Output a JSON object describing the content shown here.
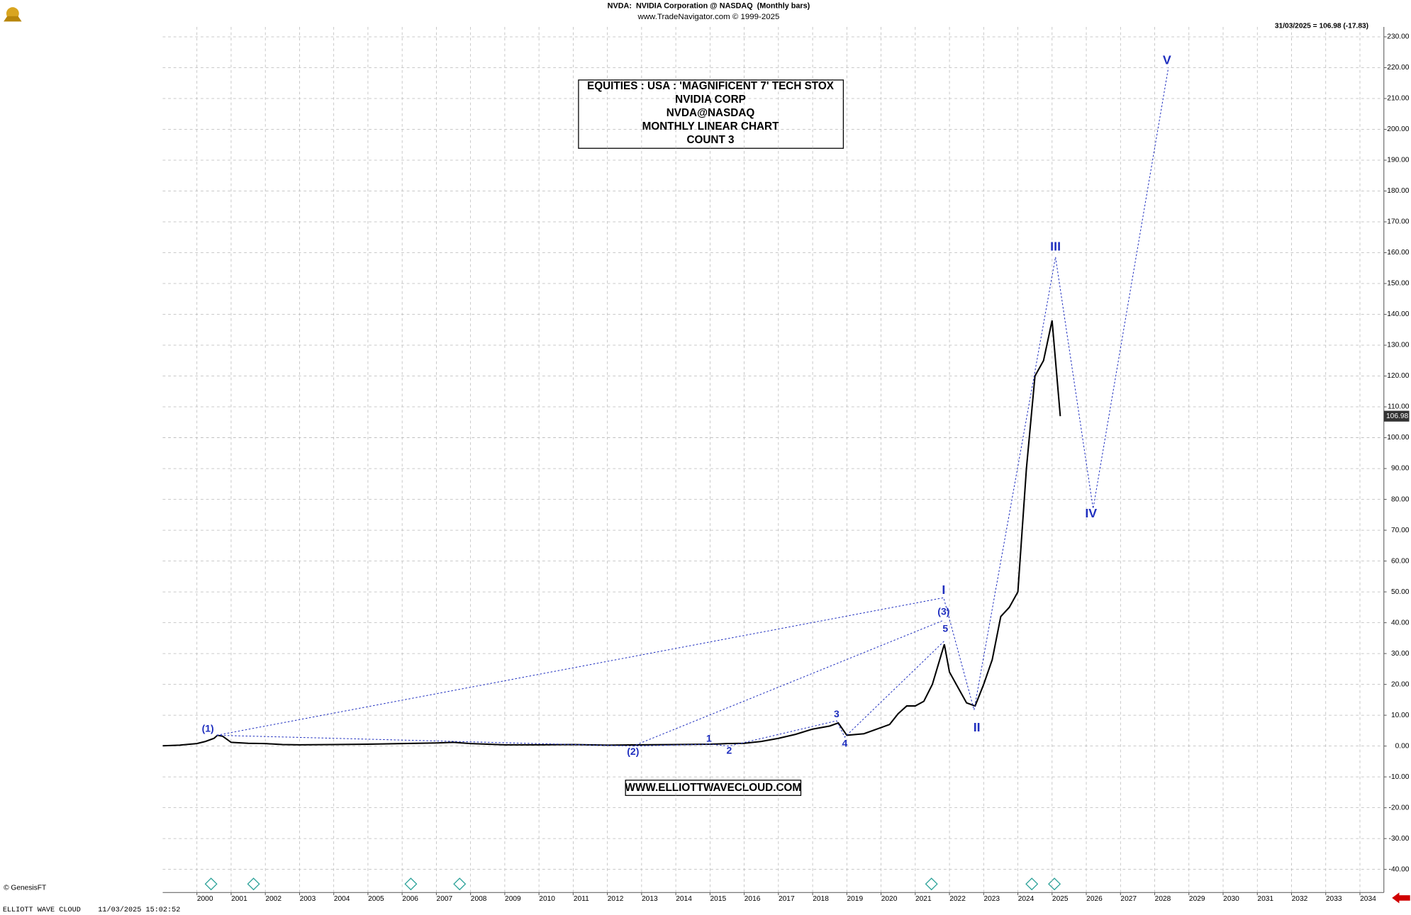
{
  "chart_data": {
    "type": "line",
    "title": "NVDA:  NVIDIA Corporation @ NASDAQ  (Monthly bars)",
    "subtitle": "www.TradeNavigator.com © 1999-2025",
    "last_label": "31/03/2025 = 106.98 (-17.83)",
    "last_price": 106.98,
    "info_box": [
      "EQUITIES : USA : 'MAGNIFICENT 7' TECH STOX",
      "NVIDIA CORP",
      "NVDA@NASDAQ",
      "MONTHLY LINEAR CHART",
      "COUNT 3"
    ],
    "website": "WWW.ELLIOTTWAVECLOUD.COM",
    "credit": "© GenesisFT",
    "footer": "ELLIOTT WAVE CLOUD    11/03/2025 15:02:52",
    "color": "#000000",
    "x": [
      1999.0,
      1999.5,
      2000.0,
      2000.25,
      2000.5,
      2000.6,
      2000.75,
      2001.0,
      2001.5,
      2002.0,
      2002.5,
      2003,
      2004,
      2005,
      2006,
      2007,
      2007.5,
      2008,
      2009,
      2010,
      2011,
      2012,
      2013,
      2014,
      2015,
      2015.5,
      2016,
      2016.5,
      2017,
      2017.5,
      2018,
      2018.5,
      2018.75,
      2019,
      2019.5,
      2020,
      2020.25,
      2020.5,
      2020.75,
      2021,
      2021.25,
      2021.5,
      2021.85,
      2022,
      2022.25,
      2022.5,
      2022.75,
      2023,
      2023.25,
      2023.5,
      2023.75,
      2024,
      2024.25,
      2024.5,
      2024.75,
      2025.0,
      2025.24
    ],
    "values": [
      0.1,
      0.3,
      0.8,
      1.5,
      2.5,
      3.5,
      3.2,
      1.2,
      0.9,
      0.8,
      0.5,
      0.4,
      0.5,
      0.6,
      0.8,
      1.0,
      1.2,
      0.8,
      0.4,
      0.4,
      0.5,
      0.3,
      0.4,
      0.5,
      0.6,
      0.8,
      0.9,
      1.5,
      2.5,
      3.8,
      5.5,
      6.5,
      7.5,
      3.5,
      4.0,
      6.0,
      7.0,
      10.5,
      13.0,
      13.0,
      14.5,
      20.0,
      33.0,
      24.0,
      19.0,
      14.0,
      13.0,
      20.0,
      28.0,
      42.0,
      45.0,
      50.0,
      90.0,
      120.0,
      125.0,
      138.0,
      106.98
    ],
    "wave_color": "#1f2fbf",
    "wave_lines": [
      {
        "x": [
          2000.58,
          2021.83,
          2022.72,
          2025.1,
          2026.2,
          2028.4
        ],
        "values": [
          3.5,
          48.1,
          11.7,
          158.6,
          77,
          220
        ]
      },
      {
        "x": [
          2000.58,
          2012.75,
          2021.83
        ],
        "values": [
          3.5,
          0,
          40.8
        ]
      },
      {
        "x": [
          2012.75,
          2015.0,
          2015.56,
          2018.7,
          2018.94,
          2021.88
        ],
        "values": [
          0,
          0.6,
          0,
          8.2,
          2.9,
          34.4
        ]
      }
    ],
    "annotations": [
      {
        "text": "(1)",
        "x": 2000.32,
        "y": 5.5
      },
      {
        "text": "(2)",
        "x": 2012.75,
        "y": -2
      },
      {
        "text": "1",
        "x": 2014.97,
        "y": 2.3
      },
      {
        "text": "2",
        "x": 2015.56,
        "y": -1.7
      },
      {
        "text": "3",
        "x": 2018.7,
        "y": 10.2
      },
      {
        "text": "4",
        "x": 2018.94,
        "y": 0.6
      },
      {
        "text": "5",
        "x": 2021.88,
        "y": 37.9
      },
      {
        "text": "(3)",
        "x": 2021.83,
        "y": 43.4
      },
      {
        "text": "I",
        "x": 2021.83,
        "y": 50.4
      },
      {
        "text": "II",
        "x": 2022.8,
        "y": 5.8
      },
      {
        "text": "III",
        "x": 2025.1,
        "y": 161.8
      },
      {
        "text": "IV",
        "x": 2026.14,
        "y": 75.2
      },
      {
        "text": "V",
        "x": 2028.36,
        "y": 222.2
      }
    ],
    "xlim": [
      1999,
      2034.7
    ],
    "xticks": [
      2000,
      2001,
      2002,
      2003,
      2004,
      2005,
      2006,
      2007,
      2008,
      2009,
      2010,
      2011,
      2012,
      2013,
      2014,
      2015,
      2016,
      2017,
      2018,
      2019,
      2020,
      2021,
      2022,
      2023,
      2024,
      2025,
      2026,
      2027,
      2028,
      2029,
      2030,
      2031,
      2032,
      2033,
      2034
    ],
    "ylim": [
      -47.5,
      233.2
    ],
    "yticks": [
      {
        "value": 230,
        "label": "230.00"
      },
      {
        "value": 220,
        "label": "220.00"
      },
      {
        "value": 210,
        "label": "210.00"
      },
      {
        "value": 200,
        "label": "200.00"
      },
      {
        "value": 190,
        "label": "190.00"
      },
      {
        "value": 180,
        "label": "180.00"
      },
      {
        "value": 170,
        "label": "170.00"
      },
      {
        "value": 160,
        "label": "160.00"
      },
      {
        "value": 150,
        "label": "150.00"
      },
      {
        "value": 140,
        "label": "140.00"
      },
      {
        "value": 130,
        "label": "130.00"
      },
      {
        "value": 120,
        "label": "120.00"
      },
      {
        "value": 110,
        "label": "110.00"
      },
      {
        "value": 100,
        "label": "100.00"
      },
      {
        "value": 90,
        "label": "90.00"
      },
      {
        "value": 80,
        "label": "80.00"
      },
      {
        "value": 70,
        "label": "70.00"
      },
      {
        "value": 60,
        "label": "60.00"
      },
      {
        "value": 50,
        "label": "50.00"
      },
      {
        "value": 40,
        "label": "40.00"
      },
      {
        "value": 30,
        "label": "30.00"
      },
      {
        "value": 20,
        "label": "20.00"
      },
      {
        "value": 10,
        "label": "10.00"
      },
      {
        "value": 0,
        "label": "0.00"
      },
      {
        "value": -10,
        "label": "-10.00"
      },
      {
        "value": -20,
        "label": "-20.00"
      },
      {
        "value": -30,
        "label": "-30.00"
      },
      {
        "value": -40,
        "label": "-40.00"
      }
    ],
    "grid": true
  }
}
